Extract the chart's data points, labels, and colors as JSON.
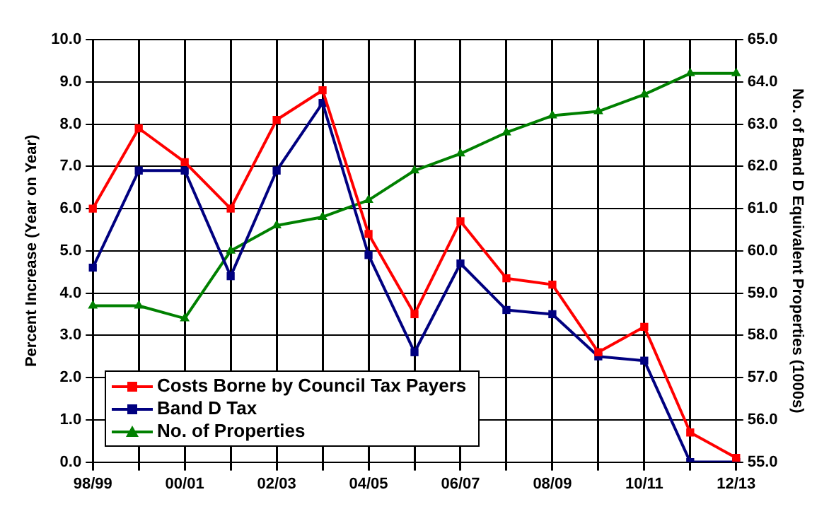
{
  "chart_data": {
    "type": "line",
    "ylabel": "Percent Increase (Year on Year)",
    "y2label": "No. of Band D Equivalent Properties (1000s)",
    "categories": [
      "98/99",
      null,
      "00/01",
      null,
      "02/03",
      null,
      "04/05",
      null,
      "06/07",
      null,
      "08/09",
      null,
      "10/11",
      null,
      "12/13"
    ],
    "series": [
      {
        "name": "Costs Borne by Council Tax Payers",
        "color": "#ff0000",
        "marker": "square",
        "values": [
          6.0,
          7.9,
          7.1,
          6.0,
          8.1,
          8.8,
          5.4,
          3.5,
          5.7,
          4.35,
          4.2,
          2.6,
          3.2,
          0.7,
          0.1
        ]
      },
      {
        "name": "Band D Tax",
        "color": "#000080",
        "marker": "square",
        "values": [
          4.6,
          6.9,
          6.9,
          4.4,
          6.9,
          8.5,
          4.9,
          2.6,
          4.7,
          3.6,
          3.5,
          2.5,
          2.4,
          0.0,
          0.0
        ]
      },
      {
        "name": "No. of Properties",
        "color": "#008000",
        "marker": "triangle",
        "axis": "y2",
        "values": [
          58.7,
          58.7,
          58.4,
          60.0,
          60.6,
          60.8,
          61.2,
          61.9,
          62.3,
          62.8,
          63.2,
          63.3,
          63.7,
          64.2,
          64.2
        ]
      }
    ],
    "ylim": [
      0,
      10
    ],
    "yticks": [
      {
        "value": 0,
        "label": "0.0"
      },
      {
        "value": 1,
        "label": "1.0"
      },
      {
        "value": 2,
        "label": "2.0"
      },
      {
        "value": 3,
        "label": "3.0"
      },
      {
        "value": 4,
        "label": "4.0"
      },
      {
        "value": 5,
        "label": "5.0"
      },
      {
        "value": 6,
        "label": "6.0"
      },
      {
        "value": 7,
        "label": "7.0"
      },
      {
        "value": 8,
        "label": "8.0"
      },
      {
        "value": 9,
        "label": "9.0"
      },
      {
        "value": 10,
        "label": "10.0"
      }
    ],
    "y2lim": [
      55,
      65
    ],
    "y2ticks": [
      {
        "value": 55,
        "label": "55.0"
      },
      {
        "value": 56,
        "label": "56.0"
      },
      {
        "value": 57,
        "label": "57.0"
      },
      {
        "value": 58,
        "label": "58.0"
      },
      {
        "value": 59,
        "label": "59.0"
      },
      {
        "value": 60,
        "label": "60.0"
      },
      {
        "value": 61,
        "label": "61.0"
      },
      {
        "value": 62,
        "label": "62.0"
      },
      {
        "value": 63,
        "label": "63.0"
      },
      {
        "value": 64,
        "label": "64.0"
      },
      {
        "value": 65,
        "label": "65.0"
      }
    ],
    "grid": true,
    "legend": "bottom left",
    "line_style": "solid"
  }
}
